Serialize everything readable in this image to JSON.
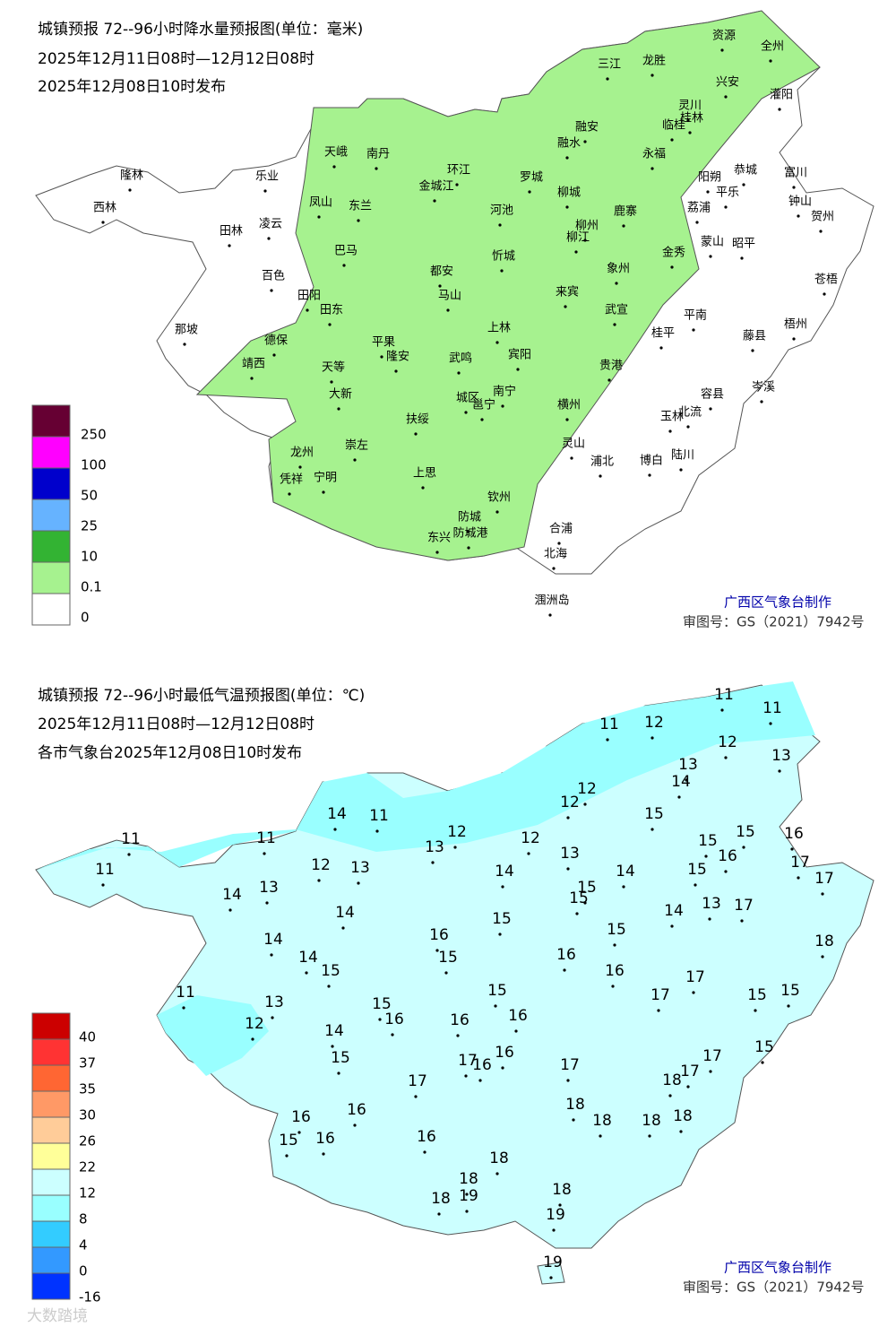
{
  "precipitation_map": {
    "title": "城镇预报 72--96小时降水量预报图(单位：毫米)",
    "period": "2025年12月11日08时—12月12日08时",
    "issued": "2025年12月08日10时发布",
    "legend": [
      "250",
      "100",
      "50",
      "25",
      "10",
      "0.1",
      "0"
    ],
    "cities": [
      "资源",
      "全州",
      "三江",
      "龙胜",
      "兴安",
      "灌阳",
      "灵川",
      "临桂",
      "桂林",
      "融安",
      "融水",
      "永福",
      "天峨",
      "南丹",
      "环江",
      "罗城",
      "金城江",
      "乐业",
      "隆林",
      "西林",
      "阳朔",
      "恭城",
      "富川",
      "平乐",
      "钟山",
      "贺州",
      "凤山",
      "东兰",
      "河池",
      "柳城",
      "鹿寨",
      "荔浦",
      "田林",
      "凌云",
      "柳州",
      "柳江",
      "蒙山",
      "昭平",
      "巴马",
      "忻城",
      "金秀",
      "象州",
      "百色",
      "都安",
      "马山",
      "苍梧",
      "田阳",
      "来宾",
      "田东",
      "武宣",
      "平南",
      "藤县",
      "梧州",
      "岑溪",
      "上林",
      "那坡",
      "德保",
      "平果",
      "桂平",
      "靖西",
      "隆安",
      "宾阳",
      "天等",
      "武鸣",
      "贵港",
      "大新",
      "南宁",
      "城区",
      "邕宁",
      "容县",
      "横州",
      "北流",
      "玉林",
      "扶绥",
      "崇左",
      "灵山",
      "龙州",
      "陆川",
      "博白",
      "浦北",
      "凭祥",
      "宁明",
      "上思",
      "钦州",
      "防城",
      "东兴",
      "防城港",
      "合浦",
      "北海",
      "涠洲岛"
    ],
    "credit": "广西区气象台制作",
    "approval": "审图号：GS（2021）7942号"
  },
  "temperature_map": {
    "title": "城镇预报 72--96小时最低气温预报图(单位：℃)",
    "period": "2025年12月11日08时—12月12日08时",
    "issued": "各市气象台2025年12月08日10时发布",
    "legend": [
      "40",
      "37",
      "35",
      "30",
      "26",
      "22",
      "12",
      "8",
      "4",
      "0",
      "-16"
    ],
    "values": [
      11,
      11,
      11,
      12,
      12,
      13,
      13,
      14,
      12,
      12,
      15,
      14,
      11,
      12,
      13,
      12,
      15,
      15,
      16,
      11,
      11,
      16,
      17,
      17,
      11,
      12,
      13,
      13,
      14,
      14,
      15,
      15,
      15,
      14,
      13,
      17,
      13,
      14,
      14,
      15,
      16,
      15,
      14,
      18,
      16,
      15,
      14,
      15,
      16,
      17,
      15,
      11,
      17,
      15,
      13,
      15,
      12,
      16,
      16,
      15,
      16,
      14,
      15,
      17,
      16,
      16,
      17,
      17,
      17,
      18,
      15,
      17,
      18,
      16,
      16,
      18,
      18,
      18,
      15,
      16,
      16,
      18,
      18,
      18,
      18,
      19,
      19,
      19
    ],
    "credit": "广西区气象台制作",
    "approval": "审图号：GS（2021）7942号"
  },
  "watermark": "大数踏境"
}
